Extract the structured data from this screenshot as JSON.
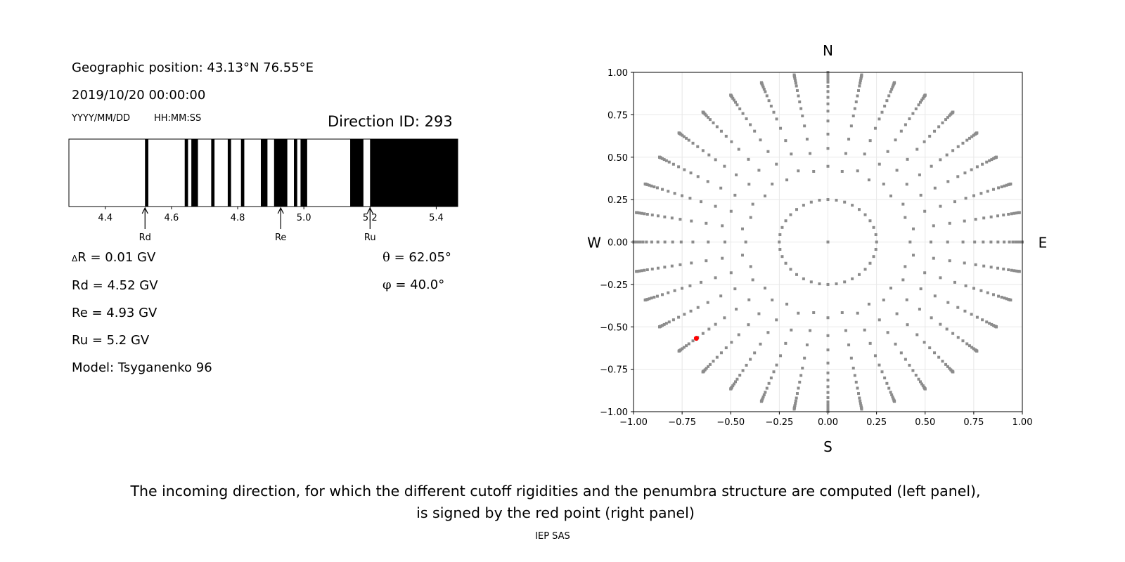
{
  "left_panel": {
    "geo_position": "Geographic position: 43.13°N 76.55°E",
    "datetime": "2019/10/20 00:00:00",
    "date_format": "YYYY/MM/DD",
    "time_format": "HH:MM:SS",
    "direction_id": "Direction ID: 293",
    "delta_r_symbol": "Δ",
    "delta_r": "R = 0.01 GV",
    "rd": "Rd = 4.52 GV",
    "re": "Re = 4.93 GV",
    "ru": "Ru = 5.2 GV",
    "model": "Model: Tsyganenko 96",
    "theta_symbol": "θ",
    "theta": " = 62.05°",
    "phi_symbol": "φ",
    "phi": " = 40.0°"
  },
  "caption": {
    "line1": "The incoming direction, for which the different cutoff rigidities and the penumbra structure are computed (left panel),",
    "line2": "is signed by the red point (right panel)",
    "credit": "IEP SAS"
  },
  "chart_data": [
    {
      "type": "bar",
      "name": "penumbra-structure",
      "xlim": [
        4.29,
        5.465
      ],
      "xticks": [
        "4.4",
        "4.6",
        "4.8",
        "5.0",
        "5.2",
        "5.4"
      ],
      "xtick_values": [
        4.4,
        4.6,
        4.8,
        5.0,
        5.2,
        5.4
      ],
      "forbidden_bands_black": [
        [
          4.52,
          4.53
        ],
        [
          4.64,
          4.65
        ],
        [
          4.66,
          4.68
        ],
        [
          4.72,
          4.73
        ],
        [
          4.77,
          4.78
        ],
        [
          4.81,
          4.82
        ],
        [
          4.87,
          4.89
        ],
        [
          4.91,
          4.95
        ],
        [
          4.97,
          4.98
        ],
        [
          4.99,
          5.01
        ],
        [
          5.14,
          5.18
        ],
        [
          5.2,
          5.465
        ]
      ],
      "colors": {
        "forbidden": "#000000",
        "allowed": "#ffffff"
      },
      "annotations": [
        {
          "label": "Rd",
          "value": 4.52
        },
        {
          "label": "Re",
          "value": 4.93
        },
        {
          "label": "Ru",
          "value": 5.2
        }
      ]
    },
    {
      "type": "scatter",
      "name": "direction-sky-map",
      "xlim": [
        -1.0,
        1.0
      ],
      "ylim": [
        -1.0,
        1.0
      ],
      "xticks": [
        "−1.00",
        "−0.75",
        "−0.50",
        "−0.25",
        "0.00",
        "0.25",
        "0.50",
        "0.75",
        "1.00"
      ],
      "yticks": [
        "−1.00",
        "−0.75",
        "−0.50",
        "−0.25",
        "0.00",
        "0.25",
        "0.50",
        "0.75",
        "1.00"
      ],
      "tick_values": [
        -1.0,
        -0.75,
        -0.5,
        -0.25,
        0,
        0.25,
        0.5,
        0.75,
        1.0
      ],
      "compass": {
        "n": "N",
        "s": "S",
        "w": "W",
        "e": "E"
      },
      "grid": true,
      "azimuth_step_deg": 10,
      "inner_ring_zenith_deg": 14.5,
      "ray_zenith_deg": [
        25,
        32,
        38,
        44,
        49,
        53,
        57,
        61,
        65,
        69,
        72,
        75,
        78,
        81,
        83,
        85,
        87,
        88.5,
        90
      ],
      "center_point": [
        0,
        0
      ],
      "selected_direction": {
        "theta_deg": 62.05,
        "phi_deg": 40.0
      },
      "colors": {
        "grid_points": "#8c8c8c",
        "selected": "#ff0000",
        "gridlines": "#e8e8e8"
      }
    }
  ]
}
